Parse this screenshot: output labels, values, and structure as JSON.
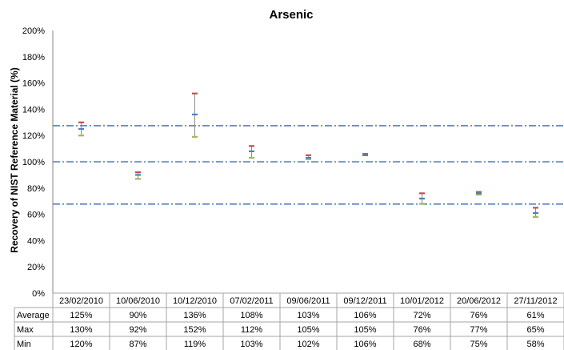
{
  "chart_data": {
    "type": "scatter",
    "title": "Arsenic",
    "ylabel": "Recovery of NIST Reference Material (%)",
    "xlabel": "",
    "ylim": [
      0,
      200
    ],
    "yticks": [
      0,
      20,
      40,
      60,
      80,
      100,
      120,
      140,
      160,
      180,
      200
    ],
    "ytick_labels": [
      "0%",
      "20%",
      "40%",
      "60%",
      "80%",
      "100%",
      "120%",
      "140%",
      "160%",
      "180%",
      "200%"
    ],
    "categories": [
      "23/02/2010",
      "10/06/2010",
      "10/12/2010",
      "07/02/2011",
      "09/06/2011",
      "09/12/2011",
      "10/01/2012",
      "20/06/2012",
      "27/11/2012"
    ],
    "series": [
      {
        "name": "Average",
        "color": "#4f81bd",
        "values": [
          125,
          90,
          136,
          108,
          103,
          106,
          72,
          76,
          61
        ]
      },
      {
        "name": "Max",
        "color": "#c0504d",
        "values": [
          130,
          92,
          152,
          112,
          105,
          105,
          76,
          77,
          65
        ]
      },
      {
        "name": "Min",
        "color": "#9bbb59",
        "values": [
          120,
          87,
          119,
          103,
          102,
          106,
          68,
          75,
          58
        ]
      }
    ],
    "table": {
      "row_labels": [
        "Average",
        "Max",
        "Min"
      ],
      "cells": [
        [
          "125%",
          "90%",
          "136%",
          "108%",
          "103%",
          "106%",
          "72%",
          "76%",
          "61%"
        ],
        [
          "130%",
          "92%",
          "152%",
          "112%",
          "105%",
          "105%",
          "76%",
          "77%",
          "65%"
        ],
        [
          "120%",
          "87%",
          "119%",
          "103%",
          "102%",
          "106%",
          "68%",
          "75%",
          "58%"
        ]
      ]
    },
    "reference_lines": [
      {
        "value": 127.5,
        "style": "dash-dot",
        "color": "#4f81bd"
      },
      {
        "value": 100,
        "style": "dash-dot",
        "color": "#4f81bd"
      },
      {
        "value": 67.8,
        "style": "dash-dot",
        "color": "#4f81bd"
      }
    ],
    "grid": false,
    "legend": "none"
  }
}
